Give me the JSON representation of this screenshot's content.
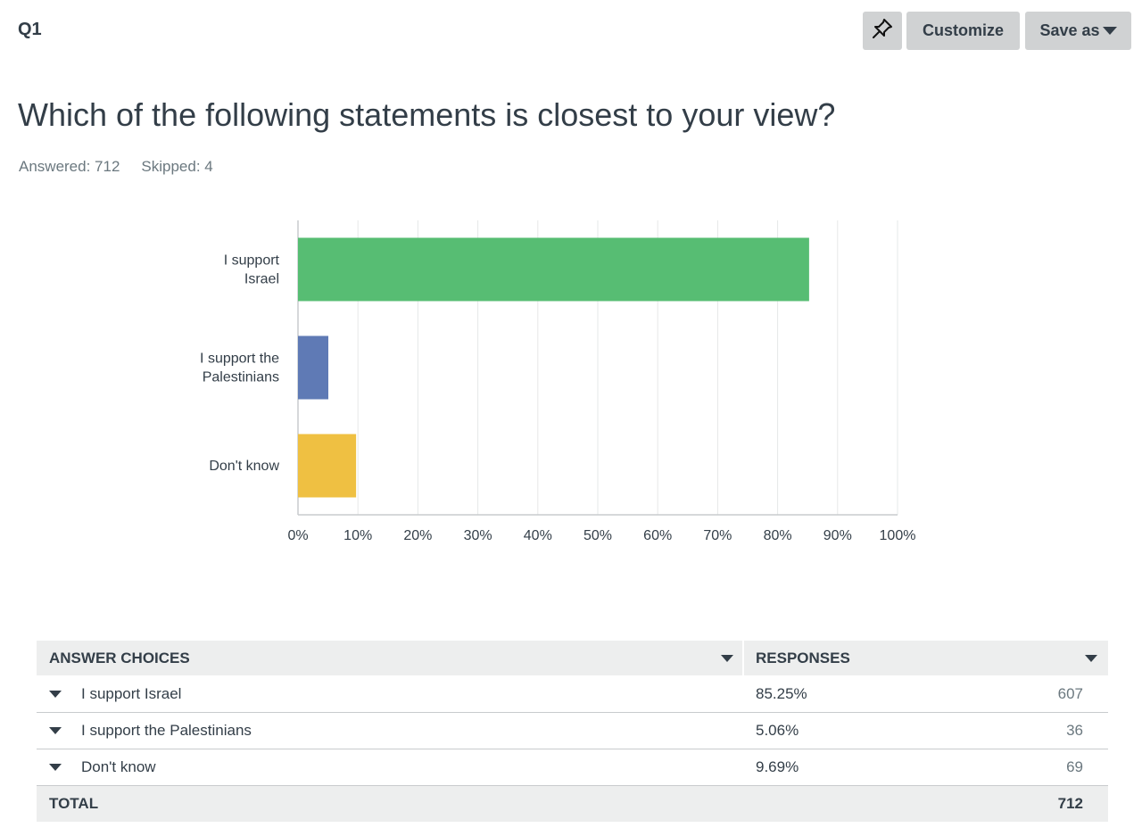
{
  "question_label": "Q1",
  "toolbar": {
    "pin_icon": "pin-icon",
    "customize_label": "Customize",
    "save_as_label": "Save as"
  },
  "question_title": "Which of the following statements is closest to your view?",
  "stats": {
    "answered": "Answered: 712",
    "skipped": "Skipped: 4"
  },
  "chart_data": {
    "type": "bar",
    "orientation": "horizontal",
    "categories": [
      [
        "I support",
        "Israel"
      ],
      [
        "I support the",
        "Palestinians"
      ],
      [
        "Don't know"
      ]
    ],
    "values": [
      85.25,
      5.06,
      9.69
    ],
    "colors": [
      "#57bd73",
      "#5f7ab5",
      "#efc042"
    ],
    "xlim": [
      0,
      100
    ],
    "xticks": [
      "0%",
      "10%",
      "20%",
      "30%",
      "40%",
      "50%",
      "60%",
      "70%",
      "80%",
      "90%",
      "100%"
    ],
    "grid": true
  },
  "table": {
    "headers": {
      "answer_choices": "ANSWER CHOICES",
      "responses": "RESPONSES"
    },
    "rows": [
      {
        "choice": "I support Israel",
        "percent": "85.25%",
        "count": "607"
      },
      {
        "choice": "I support the Palestinians",
        "percent": "5.06%",
        "count": "36"
      },
      {
        "choice": "Don't know",
        "percent": "9.69%",
        "count": "69"
      }
    ],
    "total": {
      "label": "TOTAL",
      "count": "712"
    }
  }
}
